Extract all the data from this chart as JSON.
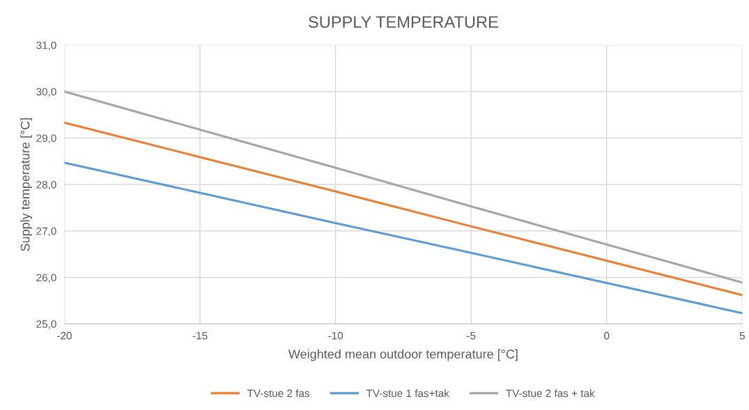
{
  "chart_data": {
    "type": "line",
    "title": "SUPPLY TEMPERATURE",
    "xlabel": "Weighted mean outdoor temperature [°C]",
    "ylabel": "Supply temperature [°C]",
    "x": [
      -20,
      -15,
      -10,
      -5,
      0,
      5
    ],
    "series": [
      {
        "name": "TV-stue 2 fas",
        "color": "#ed7d31",
        "values": [
          29.33,
          28.59,
          27.85,
          27.1,
          26.36,
          25.62
        ]
      },
      {
        "name": "TV-stue 1 fas+tak",
        "color": "#5b9bd5",
        "values": [
          28.47,
          27.82,
          27.17,
          26.53,
          25.88,
          25.23
        ]
      },
      {
        "name": "TV-stue 2 fas + tak",
        "color": "#a5a5a5",
        "values": [
          30.0,
          29.18,
          28.36,
          27.53,
          26.71,
          25.89
        ]
      }
    ],
    "xlim": [
      -20,
      5
    ],
    "xticks": [
      -20,
      -15,
      -10,
      -5,
      0,
      5
    ],
    "ylim": [
      25,
      31
    ],
    "yticks": [
      {
        "value": 25,
        "label": "25,0"
      },
      {
        "value": 26,
        "label": "26,0"
      },
      {
        "value": 27,
        "label": "27,0"
      },
      {
        "value": 28,
        "label": "28,0"
      },
      {
        "value": 29,
        "label": "29,0"
      },
      {
        "value": 30,
        "label": "30,0"
      },
      {
        "value": 31,
        "label": "31,0"
      }
    ],
    "grid": true,
    "legend": "bottom",
    "marker": "none",
    "line_style": "solid"
  }
}
